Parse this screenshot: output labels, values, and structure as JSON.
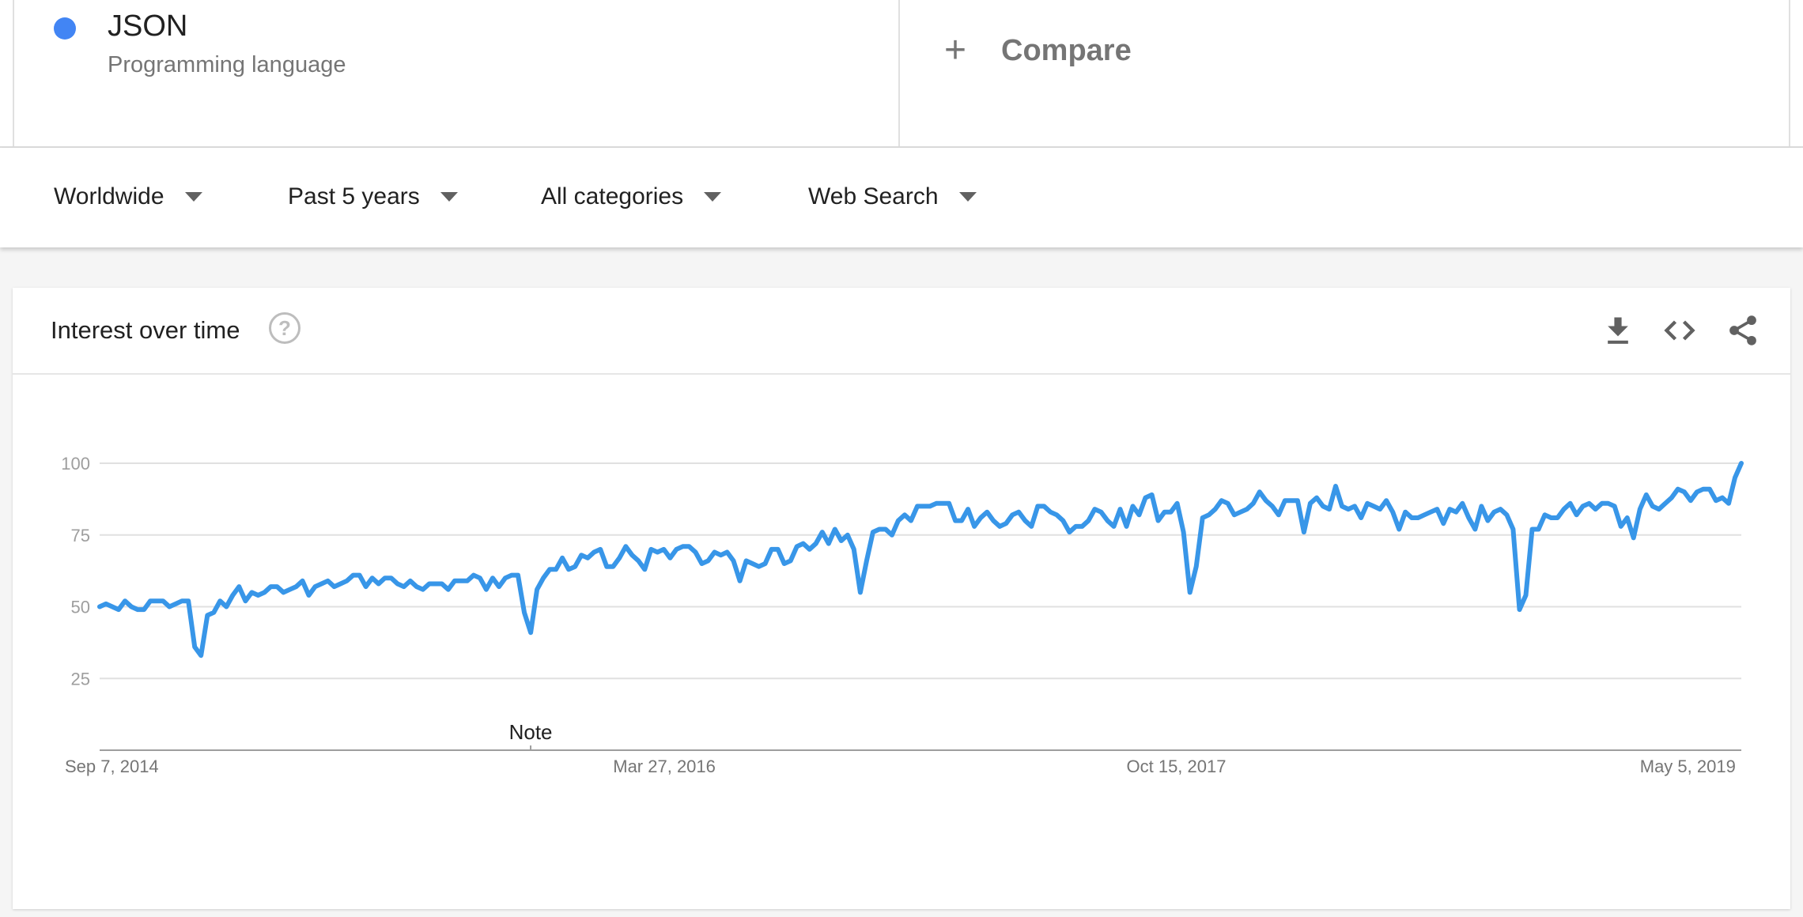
{
  "term": {
    "name": "JSON",
    "type": "Programming language",
    "color": "#4285f4"
  },
  "compare": {
    "label": "Compare",
    "icon": "plus-icon"
  },
  "filters": [
    {
      "label": "Worldwide"
    },
    {
      "label": "Past 5 years"
    },
    {
      "label": "All categories"
    },
    {
      "label": "Web Search"
    }
  ],
  "card": {
    "title": "Interest over time",
    "help_icon": "help-icon",
    "icons": [
      "download-icon",
      "embed-code-icon",
      "share-icon"
    ]
  },
  "chart_data": {
    "type": "line",
    "title": "",
    "xlabel": "",
    "ylabel": "",
    "ylim": [
      0,
      100
    ],
    "y_ticks": [
      25,
      50,
      75,
      100
    ],
    "x_tick_labels": [
      "Sep 7, 2014",
      "Mar 27, 2016",
      "Oct 15, 2017",
      "May 5, 2019"
    ],
    "x_tick_indices": [
      0,
      81,
      162,
      243
    ],
    "annotation": {
      "text": "Note",
      "index": 68
    },
    "line_color": "#3896e8",
    "grid": true,
    "legend": "none",
    "series": [
      {
        "values": [
          50,
          51,
          50,
          49,
          52,
          50,
          49,
          49,
          52,
          52,
          52,
          50,
          51,
          52,
          52,
          36,
          33,
          47,
          48,
          52,
          50,
          54,
          57,
          52,
          55,
          54,
          55,
          57,
          57,
          55,
          56,
          57,
          59,
          54,
          57,
          58,
          59,
          57,
          58,
          59,
          61,
          61,
          57,
          60,
          58,
          60,
          60,
          58,
          57,
          59,
          57,
          56,
          58,
          58,
          58,
          56,
          59,
          59,
          59,
          61,
          60,
          56,
          60,
          57,
          60,
          61,
          61,
          48,
          41,
          56,
          60,
          63,
          63,
          67,
          63,
          64,
          68,
          67,
          69,
          70,
          64,
          64,
          67,
          71,
          68,
          66,
          63,
          70,
          69,
          70,
          67,
          70,
          71,
          71,
          69,
          65,
          66,
          69,
          68,
          69,
          66,
          59,
          66,
          65,
          64,
          65,
          70,
          70,
          65,
          66,
          71,
          72,
          70,
          72,
          76,
          72,
          77,
          73,
          75,
          70,
          55,
          66,
          76,
          77,
          77,
          75,
          80,
          82,
          80,
          85,
          85,
          85,
          86,
          86,
          86,
          80,
          80,
          84,
          78,
          81,
          83,
          80,
          78,
          79,
          82,
          83,
          80,
          78,
          85,
          85,
          83,
          82,
          80,
          76,
          78,
          78,
          80,
          84,
          83,
          80,
          78,
          84,
          78,
          85,
          82,
          88,
          89,
          80,
          83,
          83,
          86,
          76,
          55,
          64,
          81,
          82,
          84,
          87,
          86,
          82,
          83,
          84,
          86,
          90,
          87,
          85,
          82,
          87,
          87,
          87,
          76,
          86,
          88,
          85,
          84,
          92,
          85,
          84,
          85,
          81,
          86,
          85,
          84,
          87,
          83,
          77,
          83,
          81,
          81,
          82,
          83,
          84,
          79,
          84,
          83,
          86,
          81,
          77,
          85,
          80,
          83,
          84,
          82,
          77,
          49,
          54,
          77,
          77,
          82,
          81,
          81,
          84,
          86,
          82,
          85,
          86,
          84,
          86,
          86,
          85,
          78,
          81,
          74,
          84,
          89,
          85,
          84,
          86,
          88,
          91,
          90,
          87,
          90,
          91,
          91,
          87,
          88,
          86,
          95,
          100
        ]
      }
    ]
  }
}
